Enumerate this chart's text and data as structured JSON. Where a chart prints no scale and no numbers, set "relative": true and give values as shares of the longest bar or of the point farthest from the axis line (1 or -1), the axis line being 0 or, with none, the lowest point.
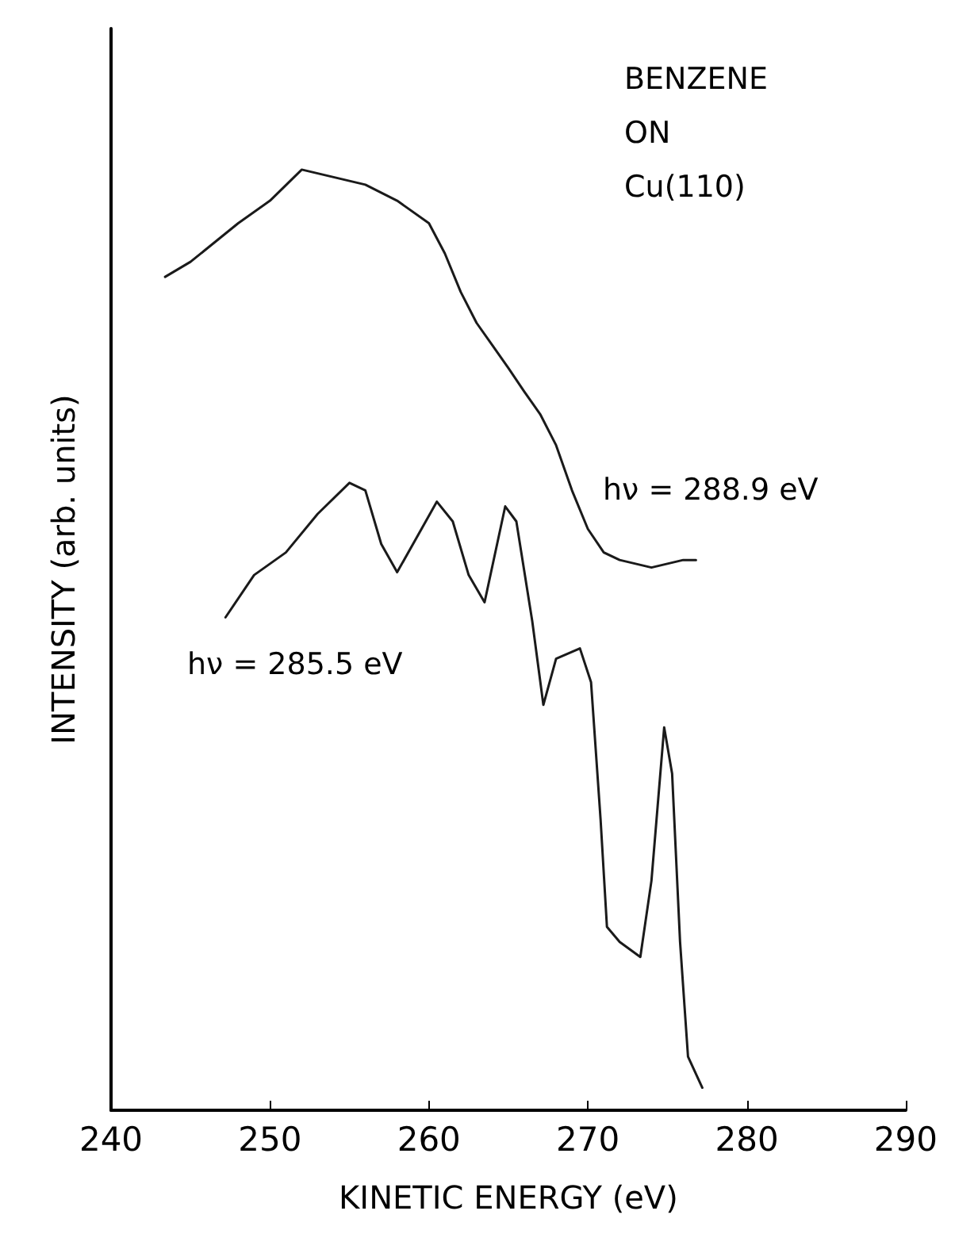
{
  "chart_data": {
    "type": "line",
    "relative": true,
    "xlabel": "KINETIC ENERGY (eV)",
    "ylabel": "INTENSITY (arb. units)",
    "xlim": [
      240,
      290
    ],
    "xticks": [
      240,
      250,
      260,
      270,
      280,
      290
    ],
    "grid": false,
    "marker": "none",
    "line_style": "solid",
    "tick_labels": "x",
    "series": [
      {
        "color": "#1a1a1a",
        "x": [
          243.4,
          245,
          248,
          250,
          252,
          254,
          256,
          258,
          260,
          261,
          262,
          263,
          264,
          265,
          266,
          267,
          268,
          269,
          270,
          271,
          272,
          274,
          276,
          276.8
        ],
        "values": [
          0.886,
          0.902,
          0.943,
          0.967,
          1,
          0.992,
          0.984,
          0.967,
          0.943,
          0.911,
          0.87,
          0.837,
          0.813,
          0.789,
          0.764,
          0.74,
          0.707,
          0.659,
          0.618,
          0.593,
          0.585,
          0.577,
          0.585,
          0.585
        ]
      },
      {
        "color": "#1a1a1a",
        "x": [
          247.2,
          249,
          251,
          253,
          255,
          256,
          257,
          258,
          259,
          260.5,
          261.5,
          262.5,
          263.5,
          264.8,
          265.5,
          266.5,
          267.2,
          268,
          269.5,
          270.2,
          270.8,
          271.2,
          272,
          273.3,
          274,
          274.8,
          275.3,
          275.8,
          276.3,
          277.2
        ],
        "values": [
          0.524,
          0.569,
          0.593,
          0.634,
          0.667,
          0.659,
          0.602,
          0.572,
          0.602,
          0.647,
          0.626,
          0.569,
          0.54,
          0.642,
          0.626,
          0.52,
          0.431,
          0.48,
          0.491,
          0.455,
          0.309,
          0.195,
          0.179,
          0.163,
          0.244,
          0.407,
          0.358,
          0.179,
          0.057,
          0.024
        ]
      }
    ],
    "annotations": [
      "BENZENE\nON\nCu(110)",
      "hν = 288.9 eV",
      "hν = 285.5 eV"
    ]
  }
}
